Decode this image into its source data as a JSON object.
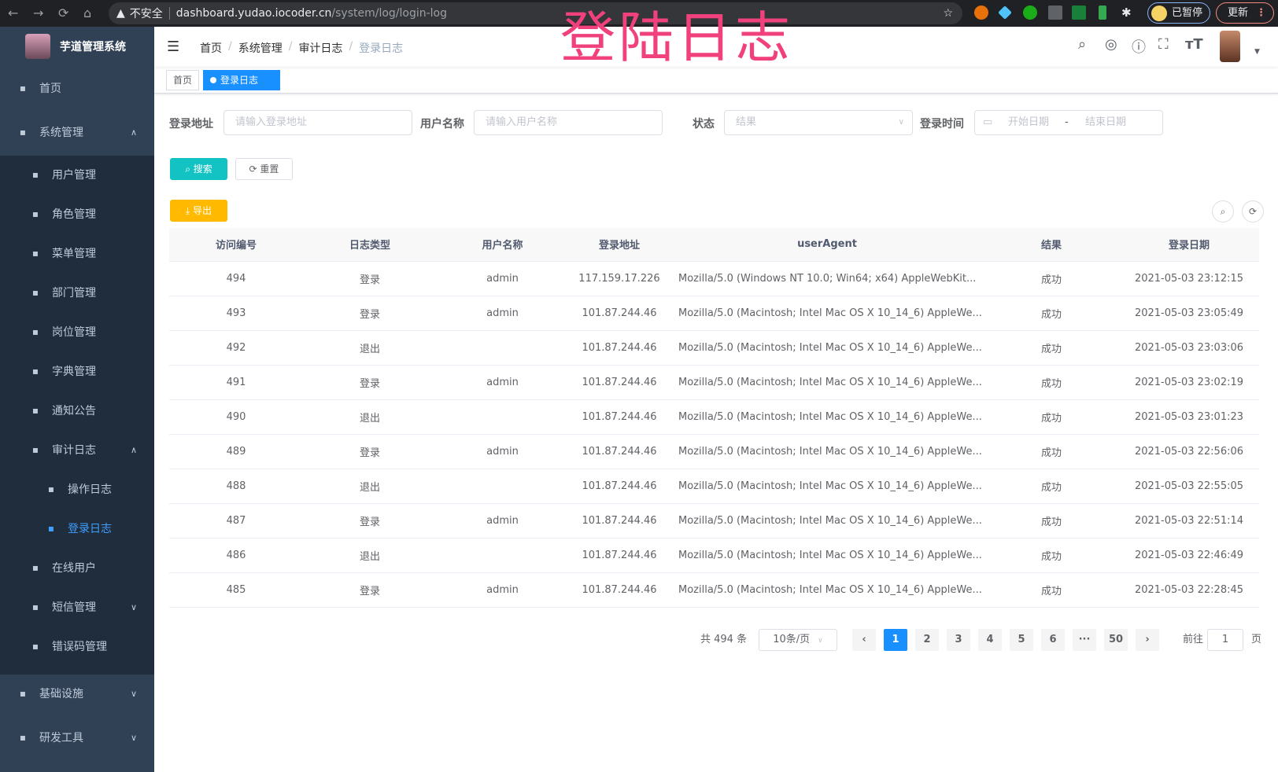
{
  "browser": {
    "back": "←",
    "forward": "→",
    "reload": "⟳",
    "home": "⌂",
    "security": "不安全",
    "host": "dashboard.yudao.iocoder.cn",
    "path": "/system/log/login-log",
    "paused": "已暂停",
    "update": "更新"
  },
  "overlay_title": "登陆日志",
  "sidebar": {
    "app_title": "芋道管理系统",
    "items": [
      {
        "label": "首页",
        "icon": "dashboard-icon"
      },
      {
        "label": "系统管理",
        "icon": "gear-icon",
        "expanded": true
      },
      {
        "label": "用户管理",
        "icon": "user-icon"
      },
      {
        "label": "角色管理",
        "icon": "peoples-icon"
      },
      {
        "label": "菜单管理",
        "icon": "tree-table-icon"
      },
      {
        "label": "部门管理",
        "icon": "tree-icon"
      },
      {
        "label": "岗位管理",
        "icon": "post-icon"
      },
      {
        "label": "字典管理",
        "icon": "dict-icon"
      },
      {
        "label": "通知公告",
        "icon": "message-icon"
      },
      {
        "label": "审计日志",
        "icon": "log-icon",
        "expanded": true
      },
      {
        "label": "操作日志",
        "icon": "form-icon"
      },
      {
        "label": "登录日志",
        "icon": "logininfor-icon",
        "active": true
      },
      {
        "label": "在线用户",
        "icon": "online-icon"
      },
      {
        "label": "短信管理",
        "icon": "validCode-icon"
      },
      {
        "label": "错误码管理",
        "icon": "code-icon"
      },
      {
        "label": "基础设施",
        "icon": "monitor-icon"
      },
      {
        "label": "研发工具",
        "icon": "tool-icon"
      }
    ]
  },
  "breadcrumb": [
    "首页",
    "系统管理",
    "审计日志",
    "登录日志"
  ],
  "tags": {
    "home": "首页",
    "active": "登录日志",
    "close": "×"
  },
  "search": {
    "login_address": {
      "label": "登录地址",
      "placeholder": "请输入登录地址"
    },
    "username": {
      "label": "用户名称",
      "placeholder": "请输入用户名称"
    },
    "status": {
      "label": "状态",
      "placeholder": "结果"
    },
    "login_time": {
      "label": "登录时间",
      "start": "开始日期",
      "sep": "-",
      "end": "结束日期"
    },
    "search_btn": "搜索",
    "reset_btn": "重置",
    "export_btn": "导出"
  },
  "colors": {
    "primary": "#1890ff",
    "search": "#13c2c2",
    "export": "#ffba00",
    "sidebar": "#304156",
    "overlay": "#f0417c"
  },
  "table": {
    "columns": [
      "访问编号",
      "日志类型",
      "用户名称",
      "登录地址",
      "userAgent",
      "结果",
      "登录日期"
    ],
    "rows": [
      [
        "494",
        "登录",
        "admin",
        "117.159.17.226",
        "Mozilla/5.0 (Windows NT 10.0; Win64; x64) AppleWebKit...",
        "成功",
        "2021-05-03 23:12:15"
      ],
      [
        "493",
        "登录",
        "admin",
        "101.87.244.46",
        "Mozilla/5.0 (Macintosh; Intel Mac OS X 10_14_6) AppleWe...",
        "成功",
        "2021-05-03 23:05:49"
      ],
      [
        "492",
        "退出",
        "",
        "101.87.244.46",
        "Mozilla/5.0 (Macintosh; Intel Mac OS X 10_14_6) AppleWe...",
        "成功",
        "2021-05-03 23:03:06"
      ],
      [
        "491",
        "登录",
        "admin",
        "101.87.244.46",
        "Mozilla/5.0 (Macintosh; Intel Mac OS X 10_14_6) AppleWe...",
        "成功",
        "2021-05-03 23:02:19"
      ],
      [
        "490",
        "退出",
        "",
        "101.87.244.46",
        "Mozilla/5.0 (Macintosh; Intel Mac OS X 10_14_6) AppleWe...",
        "成功",
        "2021-05-03 23:01:23"
      ],
      [
        "489",
        "登录",
        "admin",
        "101.87.244.46",
        "Mozilla/5.0 (Macintosh; Intel Mac OS X 10_14_6) AppleWe...",
        "成功",
        "2021-05-03 22:56:06"
      ],
      [
        "488",
        "退出",
        "",
        "101.87.244.46",
        "Mozilla/5.0 (Macintosh; Intel Mac OS X 10_14_6) AppleWe...",
        "成功",
        "2021-05-03 22:55:05"
      ],
      [
        "487",
        "登录",
        "admin",
        "101.87.244.46",
        "Mozilla/5.0 (Macintosh; Intel Mac OS X 10_14_6) AppleWe...",
        "成功",
        "2021-05-03 22:51:14"
      ],
      [
        "486",
        "退出",
        "",
        "101.87.244.46",
        "Mozilla/5.0 (Macintosh; Intel Mac OS X 10_14_6) AppleWe...",
        "成功",
        "2021-05-03 22:46:49"
      ],
      [
        "485",
        "登录",
        "admin",
        "101.87.244.46",
        "Mozilla/5.0 (Macintosh; Intel Mac OS X 10_14_6) AppleWe...",
        "成功",
        "2021-05-03 22:28:45"
      ]
    ]
  },
  "pagination": {
    "total": "共 494 条",
    "page_size": "10条/页",
    "pages": [
      "1",
      "2",
      "3",
      "4",
      "5",
      "6",
      "···",
      "50"
    ],
    "current": "1",
    "prev": "‹",
    "next": "›",
    "goto_label": "前往",
    "goto_value": "1",
    "goto_suffix": "页"
  }
}
